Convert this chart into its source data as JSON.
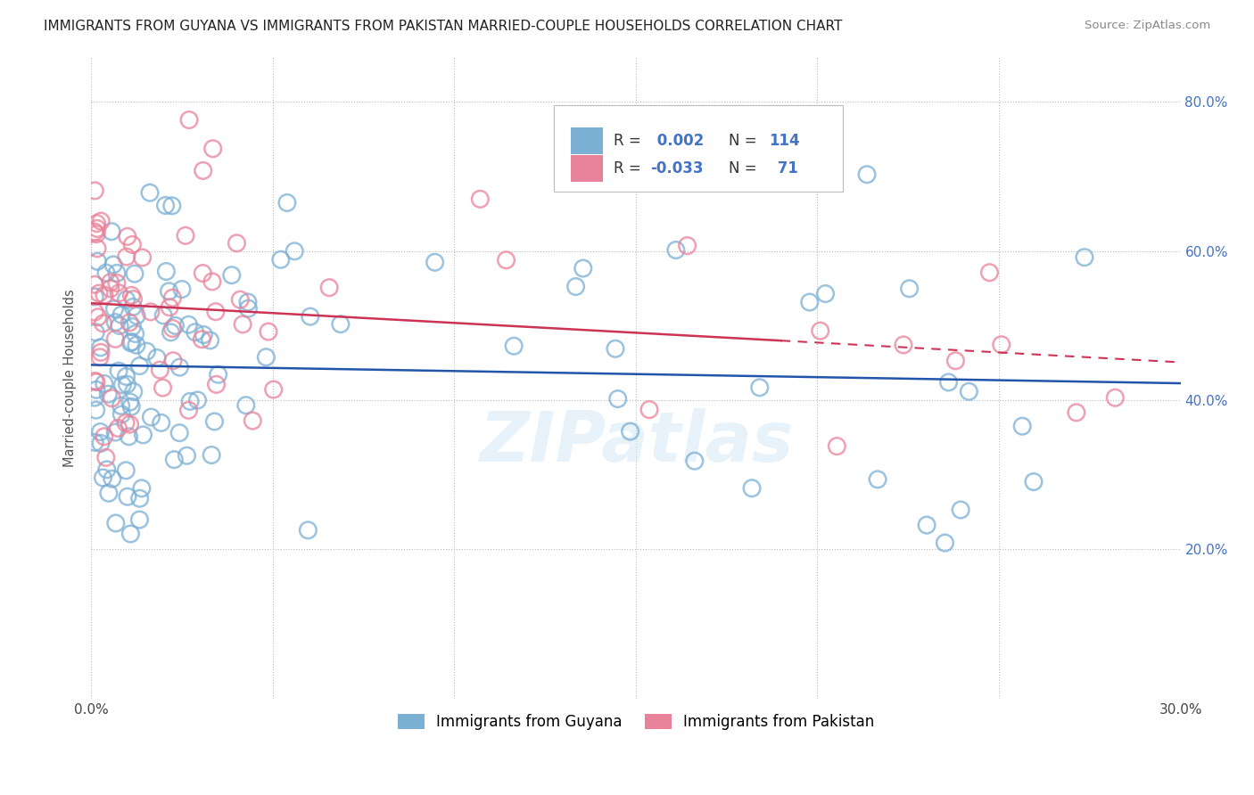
{
  "title": "IMMIGRANTS FROM GUYANA VS IMMIGRANTS FROM PAKISTAN MARRIED-COUPLE HOUSEHOLDS CORRELATION CHART",
  "source": "Source: ZipAtlas.com",
  "ylabel": "Married-couple Households",
  "xlim": [
    0.0,
    0.3
  ],
  "ylim": [
    0.0,
    0.86
  ],
  "guyana_color": "#7bafd4",
  "pakistan_color": "#e8829a",
  "guyana_R": 0.002,
  "guyana_N": 114,
  "pakistan_R": -0.033,
  "pakistan_N": 71,
  "guyana_line_color": "#2255aa",
  "pakistan_line_color": "#cc3355",
  "legend_color": "#4472c4",
  "watermark": "ZIPatlas",
  "background_color": "#ffffff",
  "title_fontsize": 11,
  "tick_fontsize": 11,
  "right_tick_color": "#4472c4"
}
